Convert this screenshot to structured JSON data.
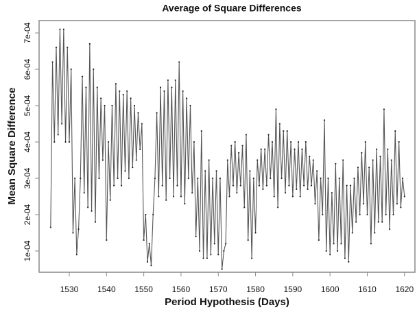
{
  "chart_data": {
    "type": "line",
    "title": "Average of Square Differences",
    "x_label": "Period Hypothesis (Days)",
    "y_label": "Mean Square Difference",
    "xlim": [
      1521.9,
      1622.8
    ],
    "ylim": [
      4.15e-05,
      0.000734
    ],
    "xticks": [
      1530,
      1540,
      1550,
      1560,
      1570,
      1580,
      1590,
      1600,
      1610,
      1620
    ],
    "yticks": [
      {
        "value": 0.0001,
        "label": "1e-04"
      },
      {
        "value": 0.0002,
        "label": "2e-04"
      },
      {
        "value": 0.0003,
        "label": "3e-04"
      },
      {
        "value": 0.0004,
        "label": "4e-04"
      },
      {
        "value": 0.0005,
        "label": "5e-04"
      },
      {
        "value": 0.0006,
        "label": "6e-04"
      },
      {
        "value": 0.0007,
        "label": "7e-04"
      }
    ],
    "series": [
      {
        "color": "#555555",
        "x": [
          1525,
          1525.5,
          1526,
          1526.5,
          1527,
          1527.5,
          1528,
          1528.5,
          1529,
          1529.5,
          1530,
          1530.5,
          1531,
          1531.5,
          1532,
          1532.5,
          1533,
          1533.5,
          1534,
          1534.5,
          1535,
          1535.5,
          1536,
          1536.5,
          1537,
          1537.5,
          1538,
          1538.5,
          1539,
          1539.5,
          1540,
          1540.5,
          1541,
          1541.5,
          1542,
          1542.5,
          1543,
          1543.5,
          1544,
          1544.5,
          1545,
          1545.5,
          1546,
          1546.5,
          1547,
          1547.5,
          1548,
          1548.5,
          1549,
          1549.5,
          1550,
          1550.5,
          1551,
          1551.5,
          1552,
          1552.5,
          1553,
          1553.5,
          1554,
          1554.5,
          1555,
          1555.5,
          1556,
          1556.5,
          1557,
          1557.5,
          1558,
          1558.5,
          1559,
          1559.5,
          1560,
          1560.5,
          1561,
          1561.5,
          1562,
          1562.5,
          1563,
          1563.5,
          1564,
          1564.5,
          1565,
          1565.5,
          1566,
          1566.5,
          1567,
          1567.5,
          1568,
          1568.5,
          1569,
          1569.5,
          1570,
          1570.5,
          1571,
          1571.5,
          1572,
          1572.5,
          1573,
          1573.5,
          1574,
          1574.5,
          1575,
          1575.5,
          1576,
          1576.5,
          1577,
          1577.5,
          1578,
          1578.5,
          1579,
          1579.5,
          1580,
          1580.5,
          1581,
          1581.5,
          1582,
          1582.5,
          1583,
          1583.5,
          1584,
          1584.5,
          1585,
          1585.5,
          1586,
          1586.5,
          1587,
          1587.5,
          1588,
          1588.5,
          1589,
          1589.5,
          1590,
          1590.5,
          1591,
          1591.5,
          1592,
          1592.5,
          1593,
          1593.5,
          1594,
          1594.5,
          1595,
          1595.5,
          1596,
          1596.5,
          1597,
          1597.5,
          1598,
          1598.5,
          1599,
          1599.5,
          1600,
          1600.5,
          1601,
          1601.5,
          1602,
          1602.5,
          1603,
          1603.5,
          1604,
          1604.5,
          1605,
          1605.5,
          1606,
          1606.5,
          1607,
          1607.5,
          1608,
          1608.5,
          1609,
          1609.5,
          1610,
          1610.5,
          1611,
          1611.5,
          1612,
          1612.5,
          1613,
          1613.5,
          1614,
          1614.5,
          1615,
          1615.5,
          1616,
          1616.5,
          1617,
          1617.5,
          1618,
          1618.5,
          1619,
          1619.5,
          1620
        ],
        "values": [
          0.000165,
          0.00062,
          0.0004,
          0.00066,
          0.00042,
          0.00071,
          0.00045,
          0.00071,
          0.0004,
          0.00066,
          0.0004,
          0.0006,
          0.00015,
          0.0003,
          9e-05,
          0.00016,
          0.0003,
          0.00058,
          0.00026,
          0.00055,
          0.00022,
          0.00067,
          0.00021,
          0.0006,
          0.00018,
          0.00055,
          0.0003,
          0.00052,
          0.00035,
          0.0005,
          0.00013,
          0.0004,
          0.00024,
          0.0005,
          0.00028,
          0.00056,
          0.0003,
          0.00054,
          0.00028,
          0.00053,
          0.00032,
          0.00054,
          0.0003,
          0.00052,
          0.00033,
          0.0005,
          0.00035,
          0.00048,
          0.00038,
          0.00045,
          0.00013,
          0.0002,
          7e-05,
          0.00012,
          6e-05,
          0.0002,
          0.0003,
          0.00048,
          0.00025,
          0.00055,
          0.00028,
          0.00054,
          0.00024,
          0.00057,
          0.0003,
          0.00055,
          0.00025,
          0.00057,
          0.00028,
          0.00062,
          0.00025,
          0.00054,
          0.00023,
          0.00052,
          0.0003,
          0.0005,
          0.00026,
          0.0004,
          0.00014,
          0.0003,
          0.0001,
          0.00043,
          8e-05,
          0.00032,
          8e-05,
          0.00035,
          9e-05,
          0.0003,
          0.00012,
          0.00032,
          9e-05,
          0.0003,
          5e-05,
          0.0001,
          0.00012,
          0.00035,
          0.00025,
          0.00039,
          0.00028,
          0.0004,
          0.00026,
          0.00037,
          0.00028,
          0.00039,
          0.00022,
          0.00042,
          0.00013,
          0.00032,
          8e-05,
          0.0003,
          0.00015,
          0.00035,
          0.00028,
          0.00038,
          0.00027,
          0.00038,
          0.00028,
          0.00042,
          0.0003,
          0.0004,
          0.00025,
          0.00049,
          0.00022,
          0.00045,
          0.0003,
          0.00043,
          0.00026,
          0.00043,
          0.00028,
          0.0004,
          0.00025,
          0.00038,
          0.00027,
          0.0004,
          0.00025,
          0.00038,
          0.00028,
          0.0004,
          0.00027,
          0.00036,
          0.00028,
          0.00035,
          0.00023,
          0.00032,
          0.00013,
          0.0003,
          0.0002,
          0.00046,
          0.0001,
          0.0003,
          9e-05,
          0.00026,
          0.00012,
          0.00034,
          0.0001,
          0.0003,
          0.00012,
          0.00035,
          8e-05,
          0.00028,
          7e-05,
          0.00028,
          0.00015,
          0.0003,
          0.00018,
          0.00033,
          0.0002,
          0.00037,
          0.00023,
          0.0004,
          0.0002,
          0.00033,
          0.00012,
          0.00035,
          0.00015,
          0.00038,
          0.00018,
          0.00036,
          0.00018,
          0.00049,
          0.0002,
          0.00038,
          0.00016,
          0.00035,
          0.0002,
          0.00043,
          0.00023,
          0.0004,
          0.00022,
          0.0003,
          0.00025
        ]
      }
    ]
  }
}
